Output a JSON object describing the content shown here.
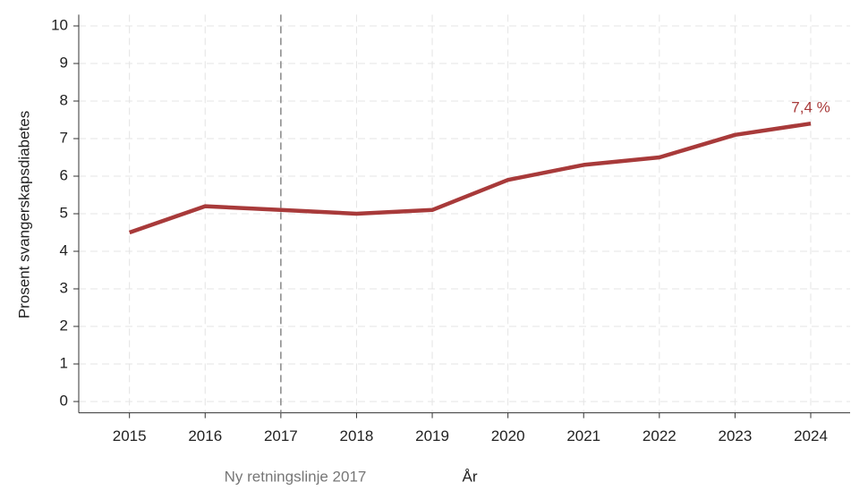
{
  "chart_data": {
    "type": "line",
    "x": [
      2015,
      2016,
      2017,
      2018,
      2019,
      2020,
      2021,
      2022,
      2023,
      2024
    ],
    "series": [
      {
        "name": "Prosent svangerskapsdiabetes",
        "color": "#a83a3a",
        "values": [
          4.5,
          5.2,
          5.1,
          5.0,
          5.1,
          5.9,
          6.3,
          6.5,
          7.1,
          7.4
        ],
        "value_labels": [
          null,
          null,
          null,
          null,
          null,
          null,
          null,
          null,
          null,
          "7,4 %"
        ]
      }
    ],
    "xlim": [
      2014.33,
      2024.52
    ],
    "xticks": [
      2015,
      2016,
      2017,
      2018,
      2019,
      2020,
      2021,
      2022,
      2023,
      2024
    ],
    "ylim": [
      -0.3,
      10.3
    ],
    "yticks": [
      0,
      1,
      2,
      3,
      4,
      5,
      6,
      7,
      8,
      9,
      10
    ],
    "grid": true,
    "xlabel": "År",
    "ylabel": "Prosent svangerskapsdiabetes",
    "reference_line": {
      "x": 2017,
      "label": "Ny retningslinje 2017"
    }
  }
}
